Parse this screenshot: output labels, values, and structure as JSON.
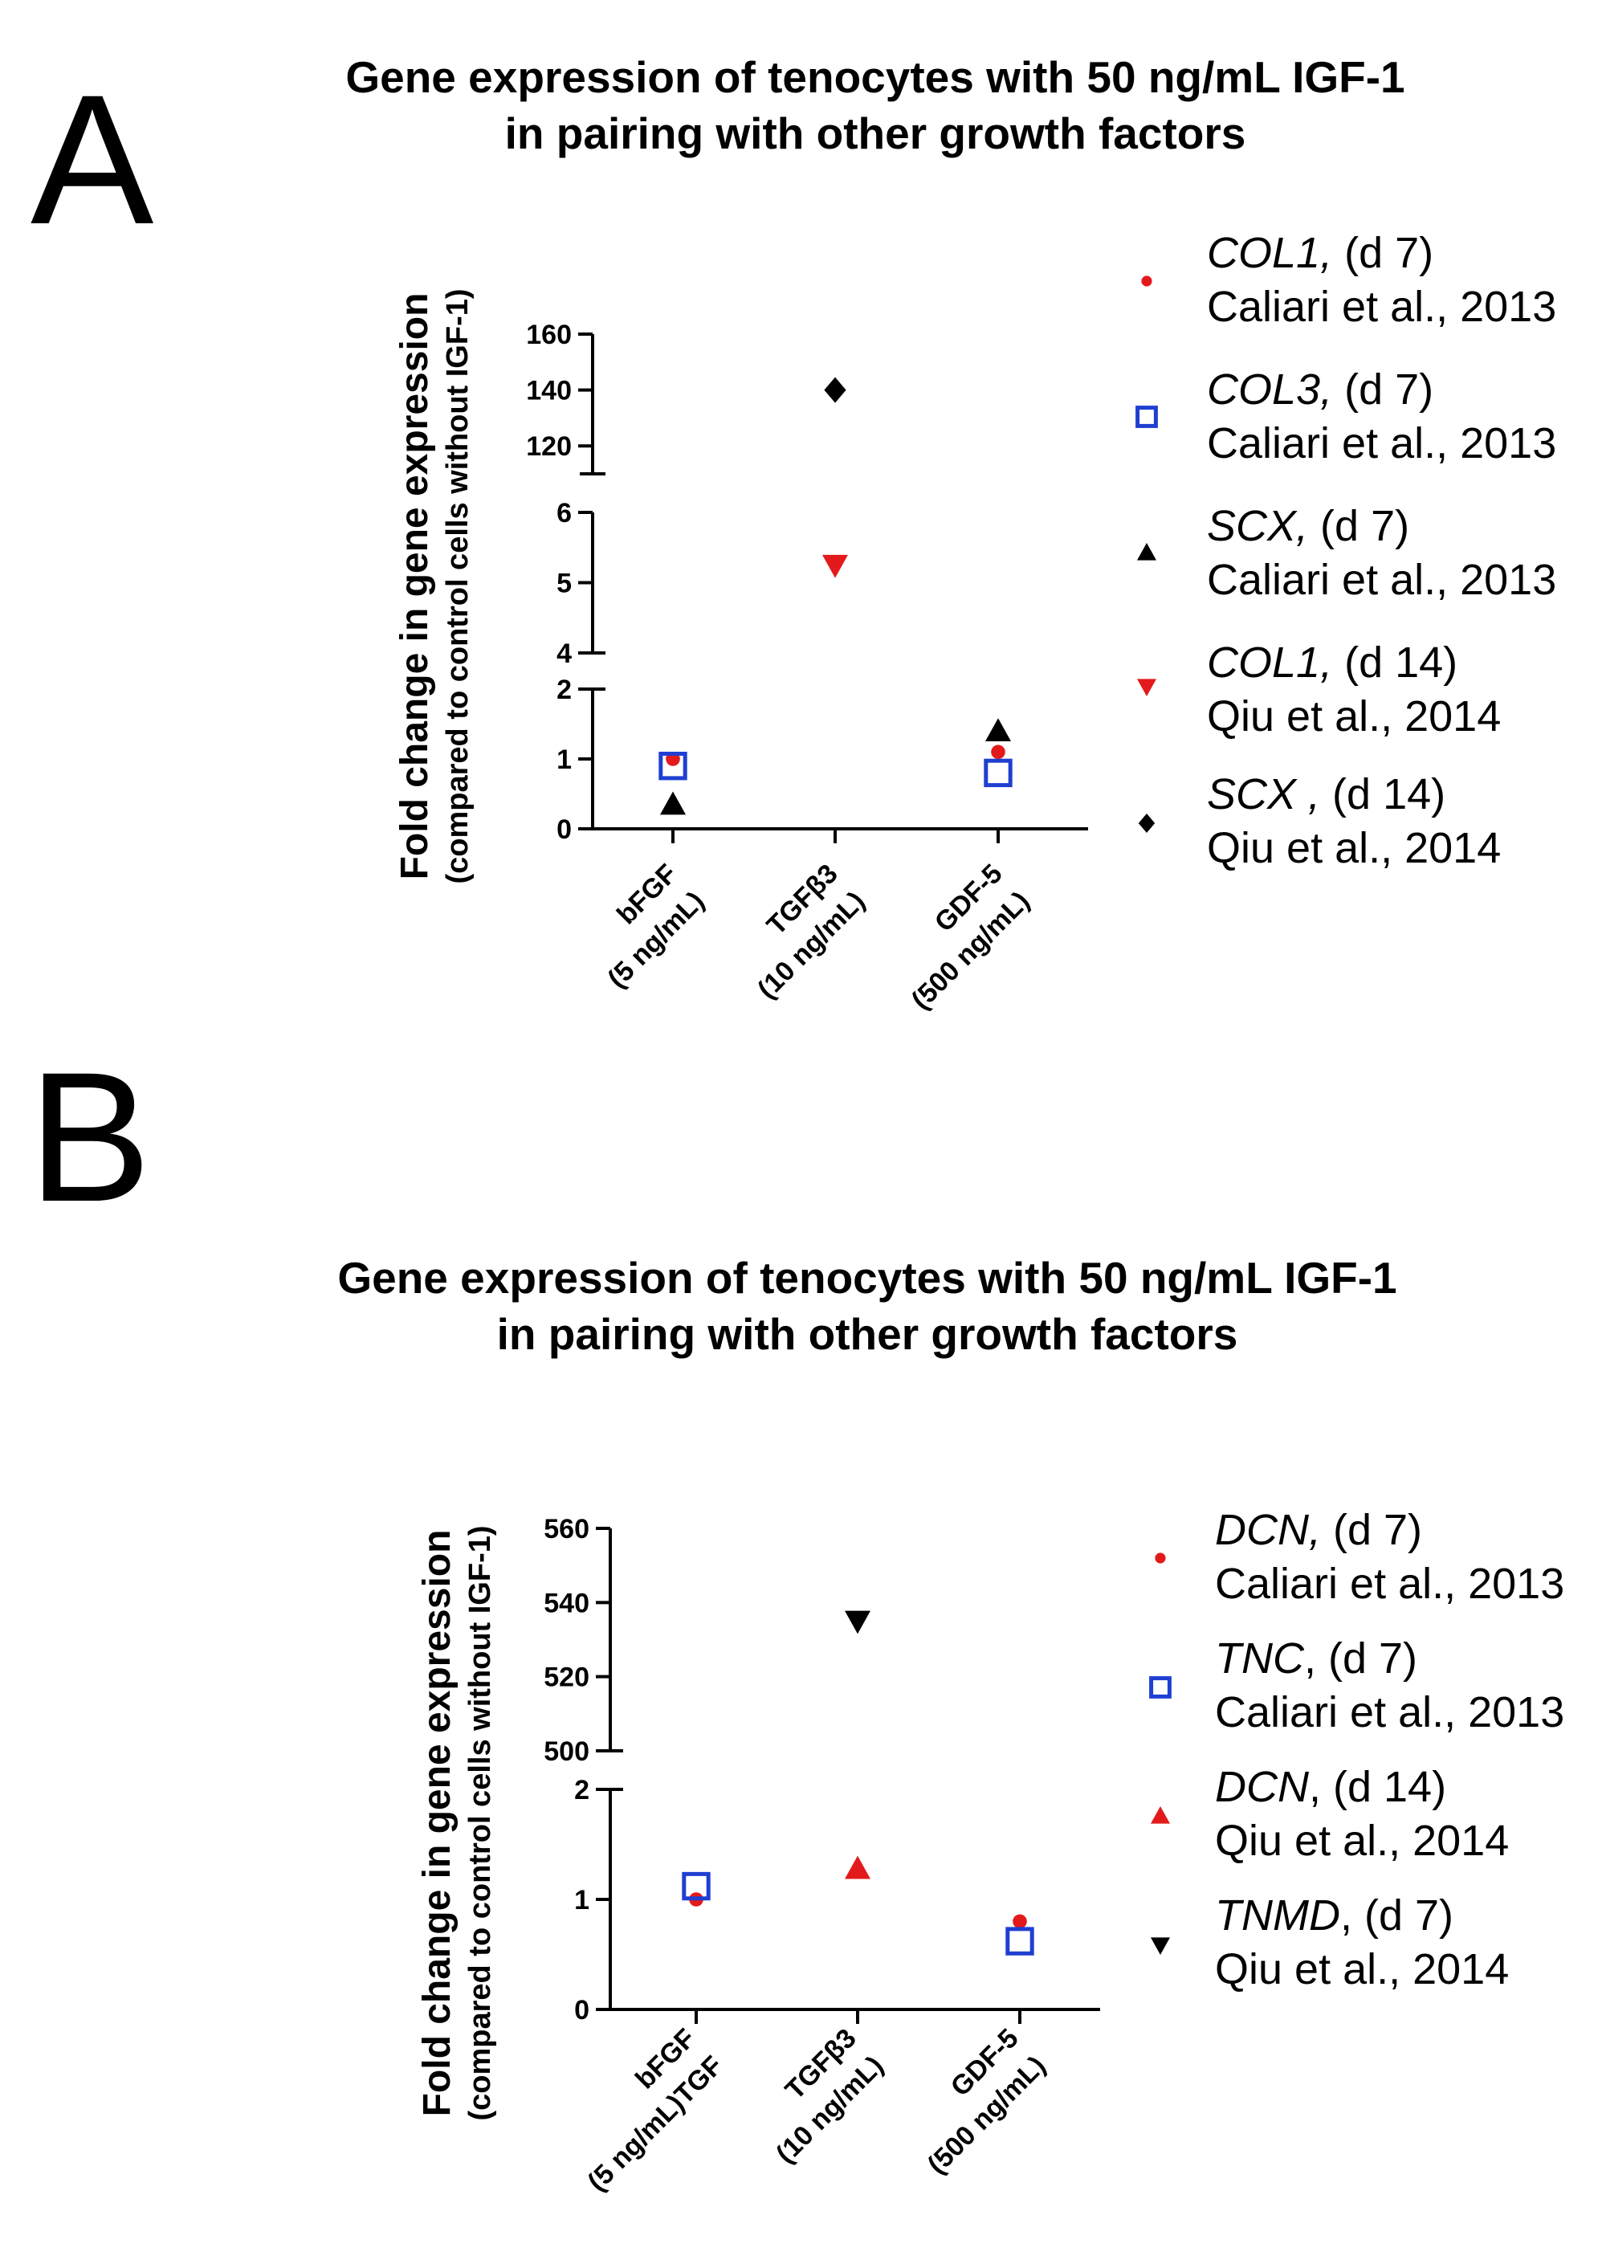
{
  "panels": [
    {
      "letter": "A",
      "title_line1": "Gene expression of tenocytes with 50 ng/mL IGF-1",
      "title_line2": "in pairing with other growth factors",
      "ylabel_main": "Fold change in gene expression",
      "ylabel_sub": "(compared to control cells without IGF-1)",
      "categories": [
        {
          "name": "bFGF",
          "conc": "(5 ng/mL)"
        },
        {
          "name": "TGFβ3",
          "conc": "(10 ng/mL)"
        },
        {
          "name": "GDF-5",
          "conc": "(500 ng/mL)"
        }
      ],
      "legend": [
        {
          "gene": "COL1,",
          "day": " (d 7)",
          "source": "Caliari et al., 2013",
          "marker": "circle",
          "color": "#e31a1c"
        },
        {
          "gene": "COL3,",
          "day": " (d 7)",
          "source": "Caliari et al., 2013",
          "marker": "square-open",
          "color": "#1f3fd1"
        },
        {
          "gene": "SCX,",
          "day": " (d 7)",
          "source": "Caliari et al., 2013",
          "marker": "triangle-up",
          "color": "#000000"
        },
        {
          "gene": "COL1,",
          "day": " (d 14)",
          "source": "Qiu et al., 2014",
          "marker": "triangle-down",
          "color": "#e31a1c"
        },
        {
          "gene": "SCX ,",
          "day": " (d 14)",
          "source": "Qiu et al., 2014",
          "marker": "diamond",
          "color": "#000000"
        }
      ]
    },
    {
      "letter": "B",
      "title_line1": "Gene expression of tenocytes with 50 ng/mL IGF-1",
      "title_line2": "in pairing with other growth factors",
      "ylabel_main": "Fold change in gene expression",
      "ylabel_sub": "(compared to control cells without IGF-1)",
      "categories": [
        {
          "name": "bFGF",
          "conc": "(5 ng/mL)TGF"
        },
        {
          "name": "TGFβ3",
          "conc": "(10 ng/mL)"
        },
        {
          "name": "GDF-5",
          "conc": "(500 ng/mL)"
        }
      ],
      "legend": [
        {
          "gene": "DCN,",
          "day": " (d 7)",
          "source": "Caliari et al., 2013",
          "marker": "circle",
          "color": "#e31a1c"
        },
        {
          "gene": "TNC",
          "day": ", (d 7)",
          "source": "Caliari et al., 2013",
          "marker": "square-open",
          "color": "#1f3fd1"
        },
        {
          "gene": "DCN",
          "day": ", (d 14)",
          "source": "Qiu et al., 2014",
          "marker": "triangle-up",
          "color": "#e31a1c"
        },
        {
          "gene": "TNMD",
          "day": ", (d 7)",
          "source": "Qiu et al., 2014",
          "marker": "triangle-down",
          "color": "#000000"
        }
      ]
    }
  ],
  "chart_data": [
    {
      "type": "scatter",
      "title": "Gene expression of tenocytes with 50 ng/mL IGF-1 in pairing with other growth factors",
      "xlabel": "",
      "ylabel": "Fold change in gene expression (compared to control cells without IGF-1)",
      "categories": [
        "bFGF (5 ng/mL)",
        "TGFβ3 (10 ng/mL)",
        "GDF-5 (500 ng/mL)"
      ],
      "y_axis_segments": [
        {
          "range": [
            0,
            2
          ],
          "ticks": [
            0,
            1,
            2
          ]
        },
        {
          "range": [
            4,
            6
          ],
          "ticks": [
            4,
            5,
            6
          ]
        },
        {
          "range": [
            110,
            160
          ],
          "ticks": [
            120,
            140,
            160
          ]
        }
      ],
      "series": [
        {
          "name": "COL1, (d 7) Caliari et al., 2013",
          "values": [
            1.0,
            null,
            1.1
          ]
        },
        {
          "name": "COL3, (d 7) Caliari et al., 2013",
          "values": [
            0.9,
            null,
            0.8
          ]
        },
        {
          "name": "SCX, (d 7) Caliari et al., 2013",
          "values": [
            0.35,
            null,
            1.4
          ]
        },
        {
          "name": "COL1, (d 14) Qiu et al., 2014",
          "values": [
            null,
            5.25,
            null
          ]
        },
        {
          "name": "SCX , (d 14) Qiu et al., 2014",
          "values": [
            null,
            140,
            null
          ]
        }
      ]
    },
    {
      "type": "scatter",
      "title": "Gene expression of tenocytes with 50 ng/mL IGF-1 in pairing with other growth factors",
      "xlabel": "",
      "ylabel": "Fold change in gene expression (compared to control cells without IGF-1)",
      "categories": [
        "bFGF (5 ng/mL)TGF",
        "TGFβ3 (10 ng/mL)",
        "GDF-5 (500 ng/mL)"
      ],
      "y_axis_segments": [
        {
          "range": [
            0,
            2
          ],
          "ticks": [
            0,
            1,
            2
          ]
        },
        {
          "range": [
            500,
            560
          ],
          "ticks": [
            500,
            520,
            540,
            560
          ]
        }
      ],
      "series": [
        {
          "name": "DCN, (d 7) Caliari et al., 2013",
          "values": [
            1.0,
            null,
            0.8
          ]
        },
        {
          "name": "TNC, (d 7) Caliari et al., 2013",
          "values": [
            1.12,
            null,
            0.62
          ]
        },
        {
          "name": "DCN, (d 14) Qiu et al., 2014",
          "values": [
            null,
            1.28,
            null
          ]
        },
        {
          "name": "TNMD, (d 7) Qiu et al., 2014",
          "values": [
            null,
            535,
            null
          ]
        }
      ]
    }
  ]
}
